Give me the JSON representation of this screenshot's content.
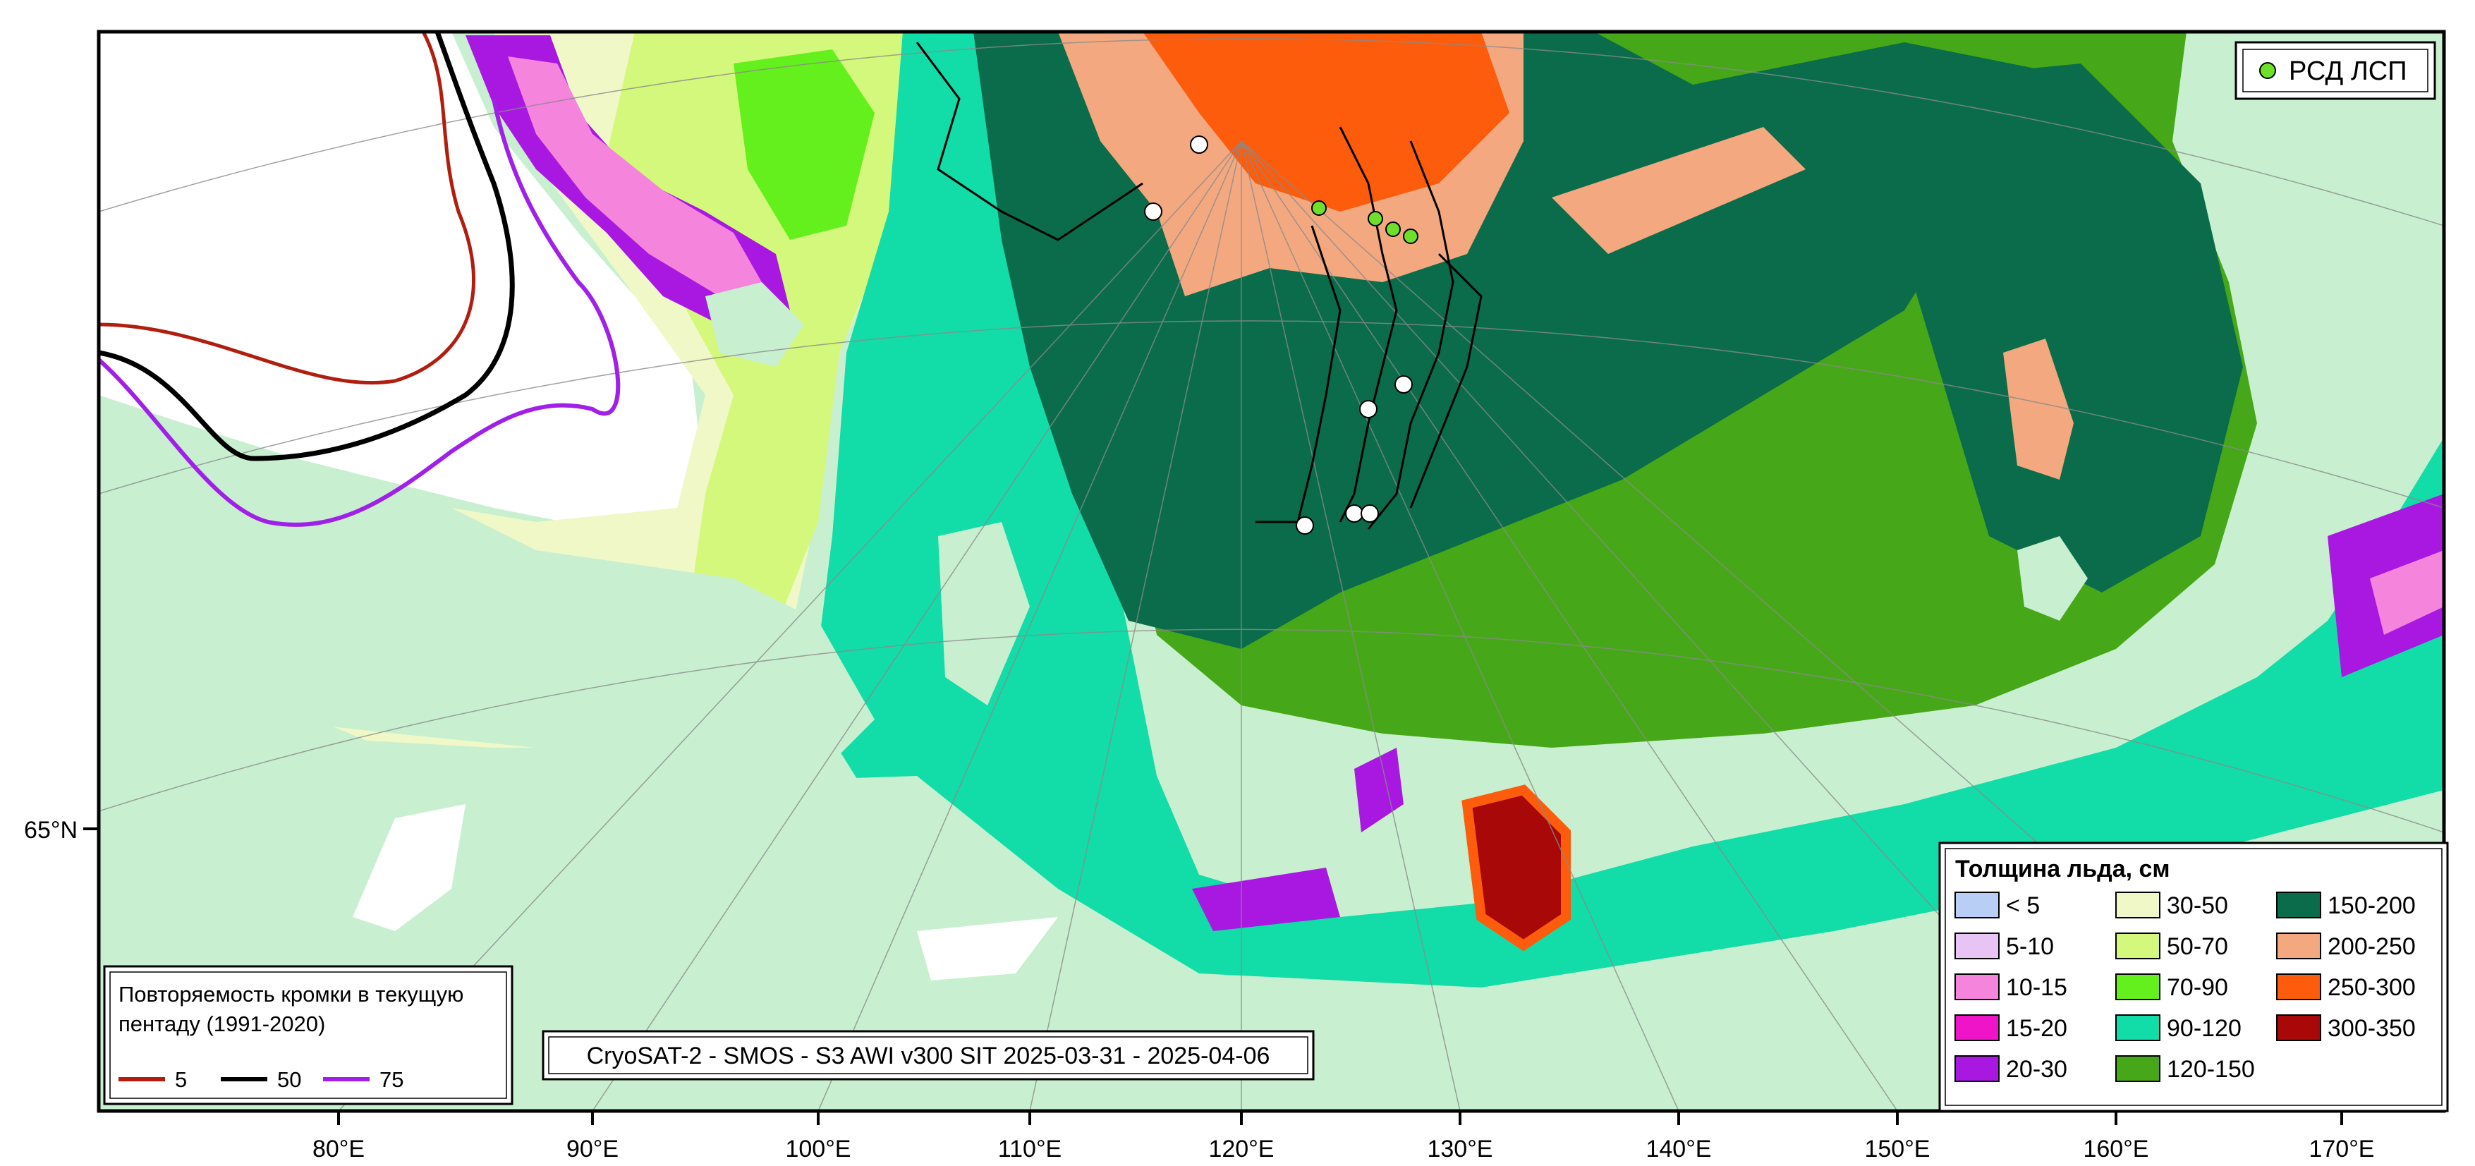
{
  "map": {
    "caption": "CryoSAT-2 - SMOS - S3 AWI v300 SIT 2025-03-31 - 2025-04-06",
    "lat_labels": [
      "65°N"
    ],
    "lon_labels": [
      "80°E",
      "90°E",
      "100°E",
      "110°E",
      "120°E",
      "130°E",
      "140°E",
      "150°E",
      "160°E",
      "170°E"
    ]
  },
  "station_legend": {
    "label": "РСД ЛСП",
    "marker_color": "#6ee02a"
  },
  "edge_legend": {
    "title_line1": "Повторяемость кромки в текущую",
    "title_line2": "пентаду (1991-2020)",
    "items": [
      {
        "label": "5",
        "color": "#b01e10"
      },
      {
        "label": "50",
        "color": "#000000"
      },
      {
        "label": "75",
        "color": "#a020e8"
      }
    ]
  },
  "thickness_legend": {
    "title": "Толщина льда, см",
    "classes": [
      {
        "label": "< 5",
        "color": "#b8cef4"
      },
      {
        "label": "5-10",
        "color": "#e8c4f4"
      },
      {
        "label": "10-15",
        "color": "#f484dc"
      },
      {
        "label": "15-20",
        "color": "#f014c8"
      },
      {
        "label": "20-30",
        "color": "#a818e0"
      },
      {
        "label": "30-50",
        "color": "#f0f8c8"
      },
      {
        "label": "50-70",
        "color": "#d4f87c"
      },
      {
        "label": "70-90",
        "color": "#64f01c"
      },
      {
        "label": "90-120",
        "color": "#12dca8"
      },
      {
        "label": "120-150",
        "color": "#46a818"
      },
      {
        "label": "150-200",
        "color": "#0a6c4a"
      },
      {
        "label": "200-250",
        "color": "#f4a880"
      },
      {
        "label": "250-300",
        "color": "#fc5c0c"
      },
      {
        "label": "300-350",
        "color": "#a80808"
      }
    ]
  },
  "colors": {
    "land": "#c8f0d0",
    "open_water": "#ffffff",
    "frame": "#000000"
  }
}
